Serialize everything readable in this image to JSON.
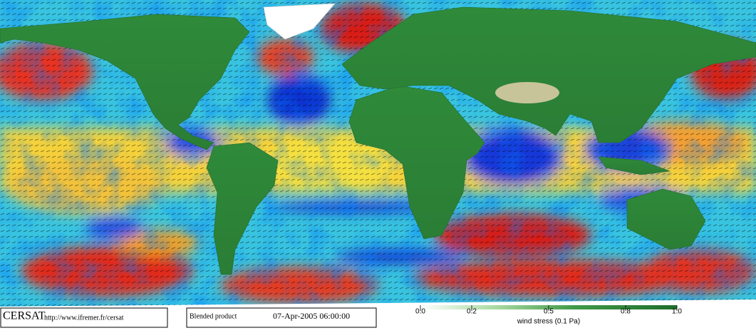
{
  "footer": {
    "logo": "CERSAT",
    "url": "http://www.ifremer.fr/cersat",
    "product": "Blended product",
    "datetime": "07-Apr-2005 06:00:00"
  },
  "colorbar": {
    "label": "wind stress (0.1 Pa)",
    "lim": [
      0,
      1
    ],
    "ticks": [
      {
        "value": 0,
        "label": "0.0"
      },
      0.2,
      0.5,
      0.8,
      {
        "value": 1,
        "label": "1.0"
      }
    ]
  }
}
